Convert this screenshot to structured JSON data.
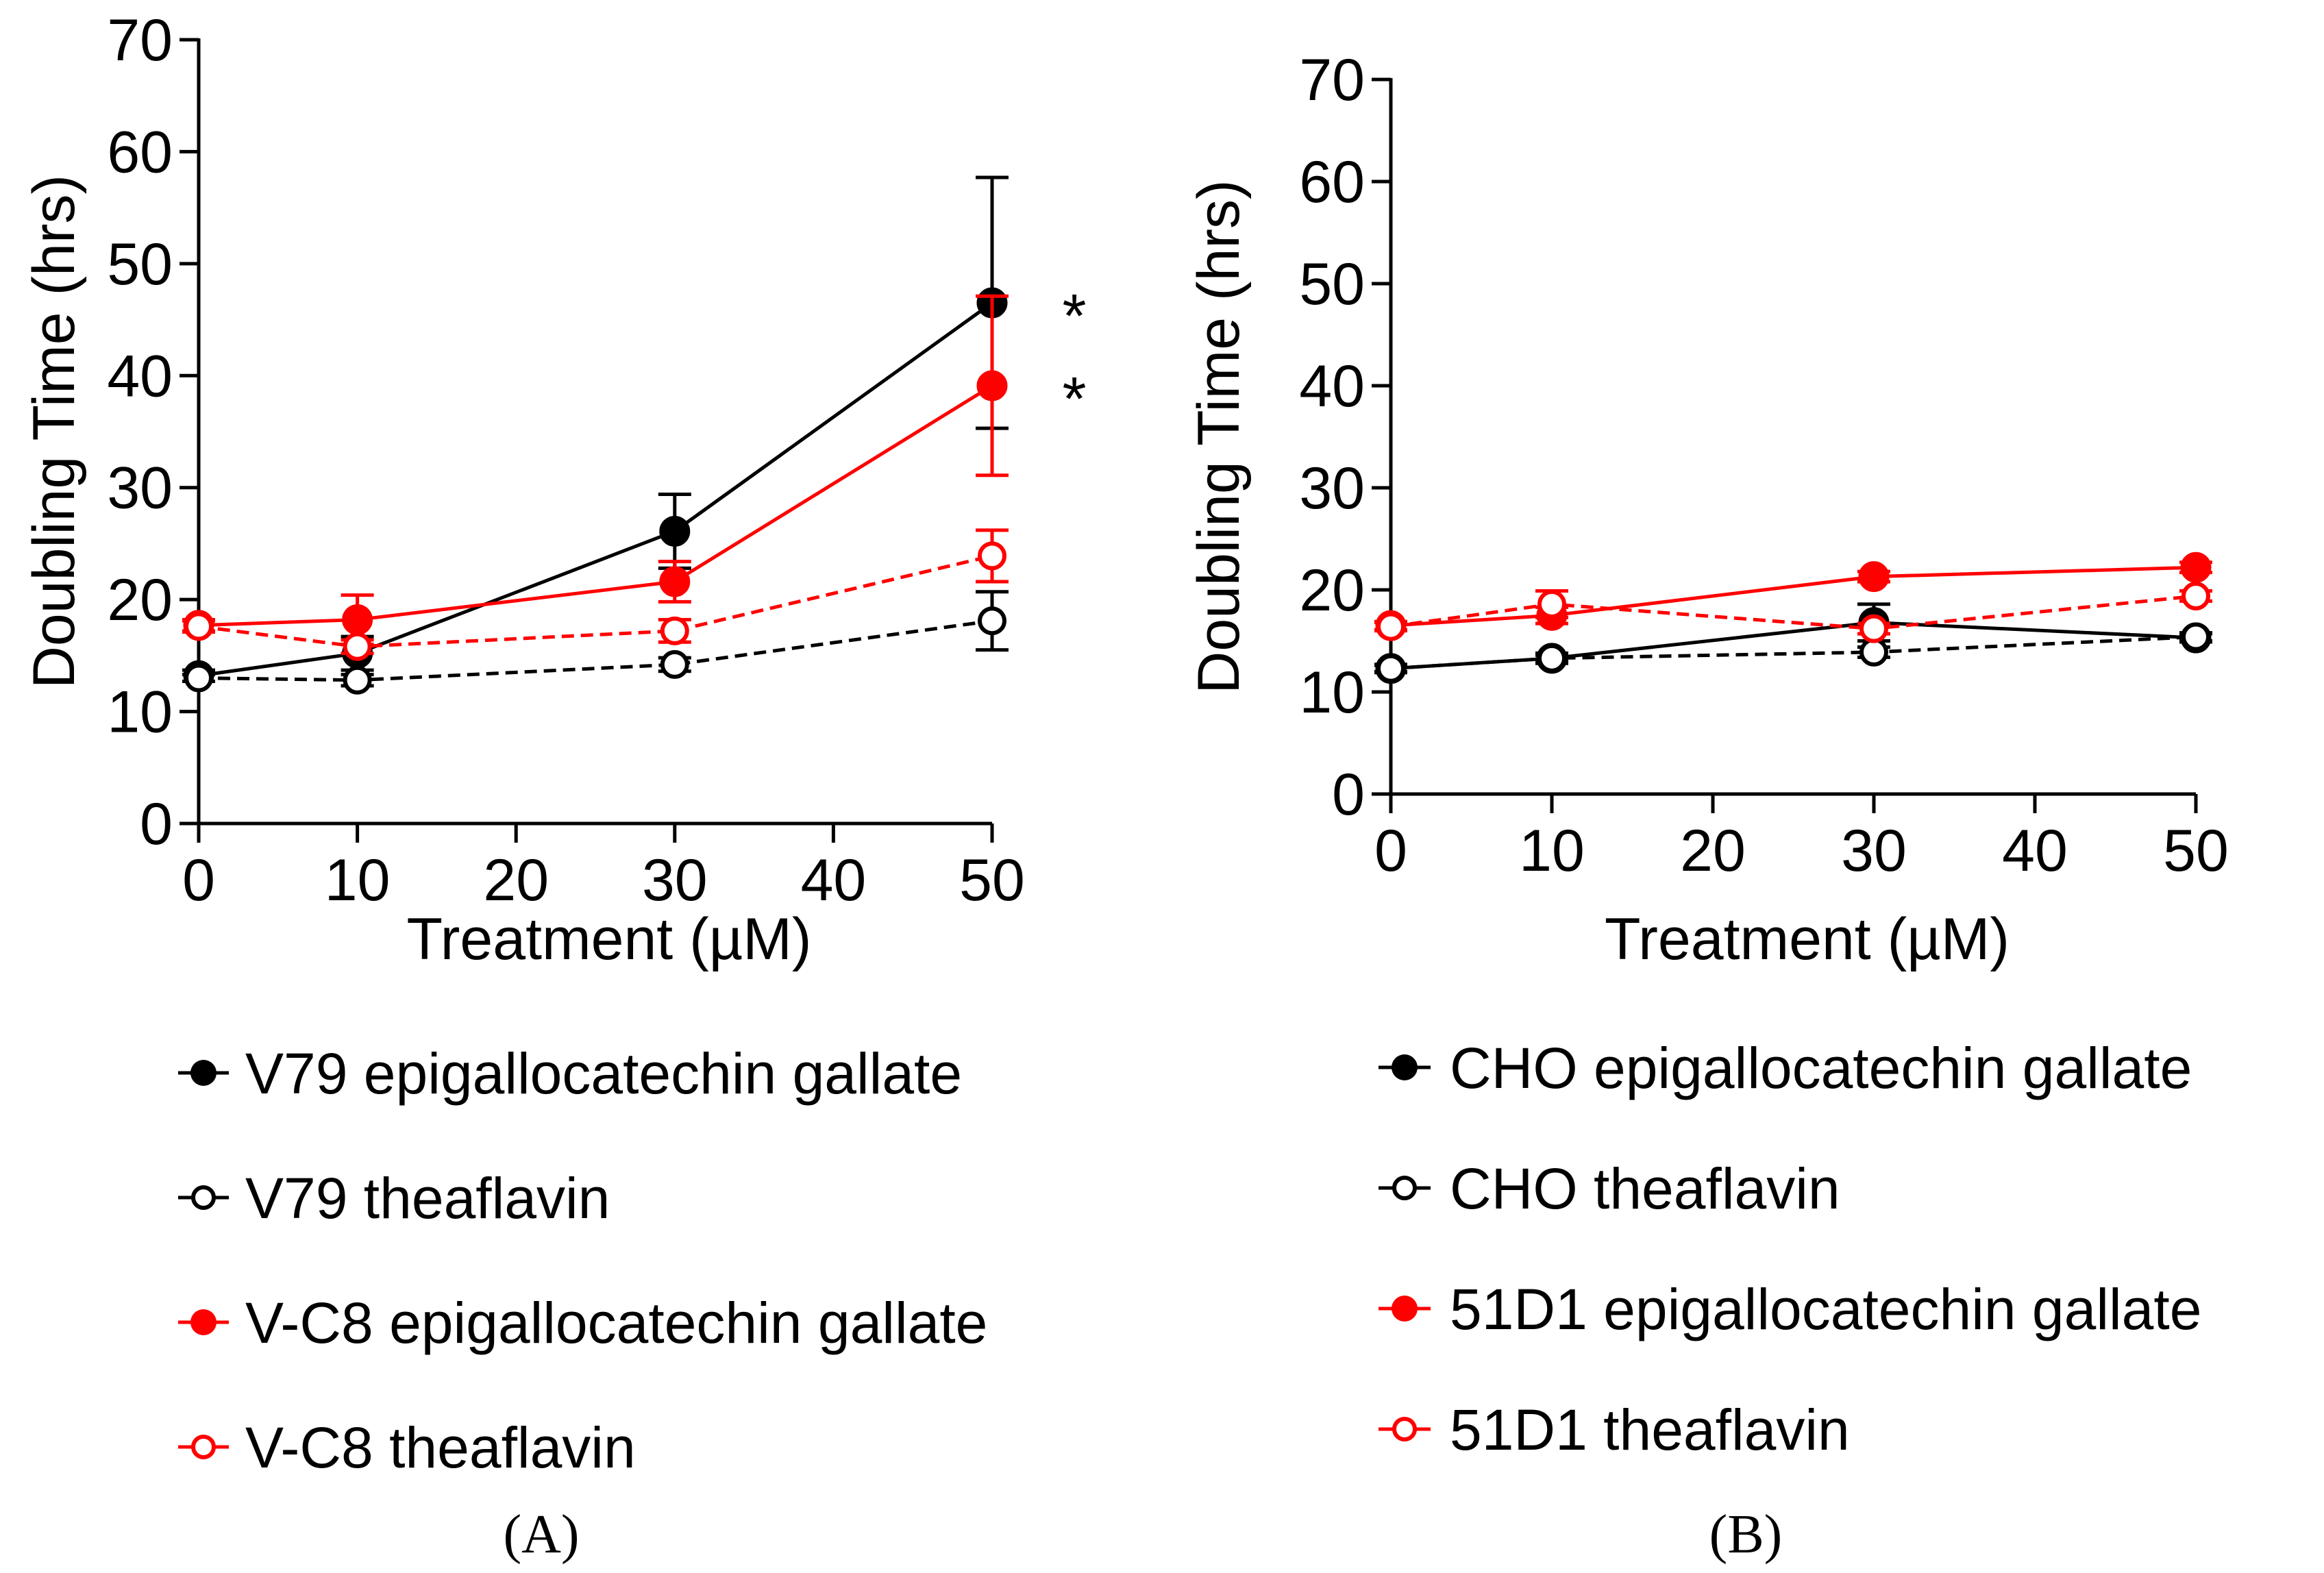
{
  "chart_data": [
    {
      "type": "line",
      "panel_label": "(A)",
      "xlabel": "Treatment  (µM)",
      "ylabel": "Doubling Time (hrs)",
      "xlim": [
        0,
        50
      ],
      "ylim": [
        0,
        70
      ],
      "xticks": [
        0,
        10,
        20,
        30,
        40,
        50
      ],
      "yticks": [
        0,
        10,
        20,
        30,
        40,
        50,
        60,
        70
      ],
      "x": [
        0,
        10,
        30,
        50
      ],
      "series": [
        {
          "name": "V79 epigallocatechin gallate",
          "color": "#000000",
          "marker": "filled",
          "dash": false,
          "values": [
            13.2,
            15.2,
            26.1,
            46.5
          ],
          "errors": [
            0.5,
            1.5,
            3.3,
            11.2
          ]
        },
        {
          "name": "V79 theaflavin",
          "color": "#000000",
          "marker": "open",
          "dash": true,
          "values": [
            13.0,
            12.8,
            14.2,
            18.1
          ],
          "errors": [
            0.3,
            0.5,
            0.6,
            2.6
          ]
        },
        {
          "name": "V-C8 epigallocatechin gallate",
          "color": "#ff0000",
          "marker": "filled",
          "dash": false,
          "values": [
            17.7,
            18.2,
            21.6,
            39.1
          ],
          "errors": [
            0.5,
            2.2,
            1.8,
            8.0
          ]
        },
        {
          "name": "V-C8 theaflavin",
          "color": "#ff0000",
          "marker": "open",
          "dash": true,
          "values": [
            17.6,
            15.8,
            17.2,
            23.9
          ],
          "errors": [
            0.5,
            0.6,
            1.0,
            2.3
          ]
        }
      ],
      "annotations": [
        {
          "text": "*",
          "series": 0,
          "x": 50
        },
        {
          "text": "*",
          "series": 2,
          "x": 50
        }
      ]
    },
    {
      "type": "line",
      "panel_label": "(B)",
      "xlabel": "Treatment  (µM)",
      "ylabel": "Doubling Time (hrs)",
      "xlim": [
        0,
        50
      ],
      "ylim": [
        0,
        70
      ],
      "xticks": [
        0,
        10,
        20,
        30,
        40,
        50
      ],
      "yticks": [
        0,
        10,
        20,
        30,
        40,
        50,
        60,
        70
      ],
      "x": [
        0,
        10,
        30,
        50
      ],
      "series": [
        {
          "name": "CHO epigallocatechin gallate",
          "color": "#000000",
          "marker": "filled",
          "dash": false,
          "values": [
            12.3,
            13.3,
            16.8,
            15.3
          ],
          "errors": [
            0.4,
            0.5,
            1.8,
            0.4
          ]
        },
        {
          "name": "CHO theaflavin",
          "color": "#000000",
          "marker": "open",
          "dash": true,
          "values": [
            12.3,
            13.3,
            13.9,
            15.4
          ],
          "errors": [
            0.3,
            0.3,
            0.5,
            0.4
          ]
        },
        {
          "name": "51D1 epigallocatechin gallate",
          "color": "#ff0000",
          "marker": "filled",
          "dash": false,
          "values": [
            16.5,
            17.5,
            21.3,
            22.2
          ],
          "errors": [
            0.4,
            0.8,
            0.5,
            0.5
          ]
        },
        {
          "name": "51D1 theaflavin",
          "color": "#ff0000",
          "marker": "open",
          "dash": true,
          "values": [
            16.4,
            18.6,
            16.2,
            19.4
          ],
          "errors": [
            0.4,
            1.3,
            0.5,
            0.5
          ]
        }
      ],
      "annotations": []
    }
  ]
}
